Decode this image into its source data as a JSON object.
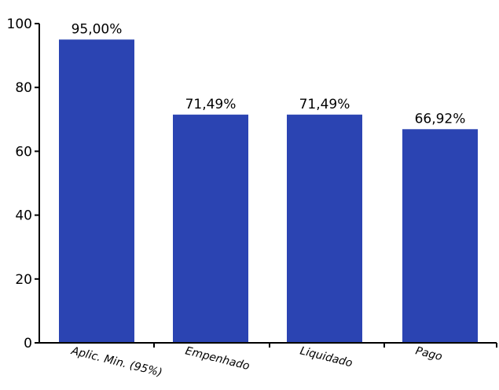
{
  "chart_data": {
    "type": "bar",
    "title": "",
    "xlabel": "",
    "ylabel": "",
    "categories": [
      "Aplic. Min. (95%)",
      "Empenhado",
      "Liquidado",
      "Pago"
    ],
    "values": [
      95.0,
      71.49,
      71.49,
      66.92
    ],
    "data_labels": [
      "95,00%",
      "71,49%",
      "71,49%",
      "66,92%"
    ],
    "ylim": [
      0,
      100
    ],
    "yticks": [
      0,
      20,
      40,
      60,
      80,
      100
    ],
    "ytick_labels": [
      "0",
      "20",
      "40",
      "60",
      "80",
      "100"
    ],
    "grid": false,
    "legend": "none",
    "bar_color": "#2b44b2",
    "axis_color": "#000000"
  }
}
